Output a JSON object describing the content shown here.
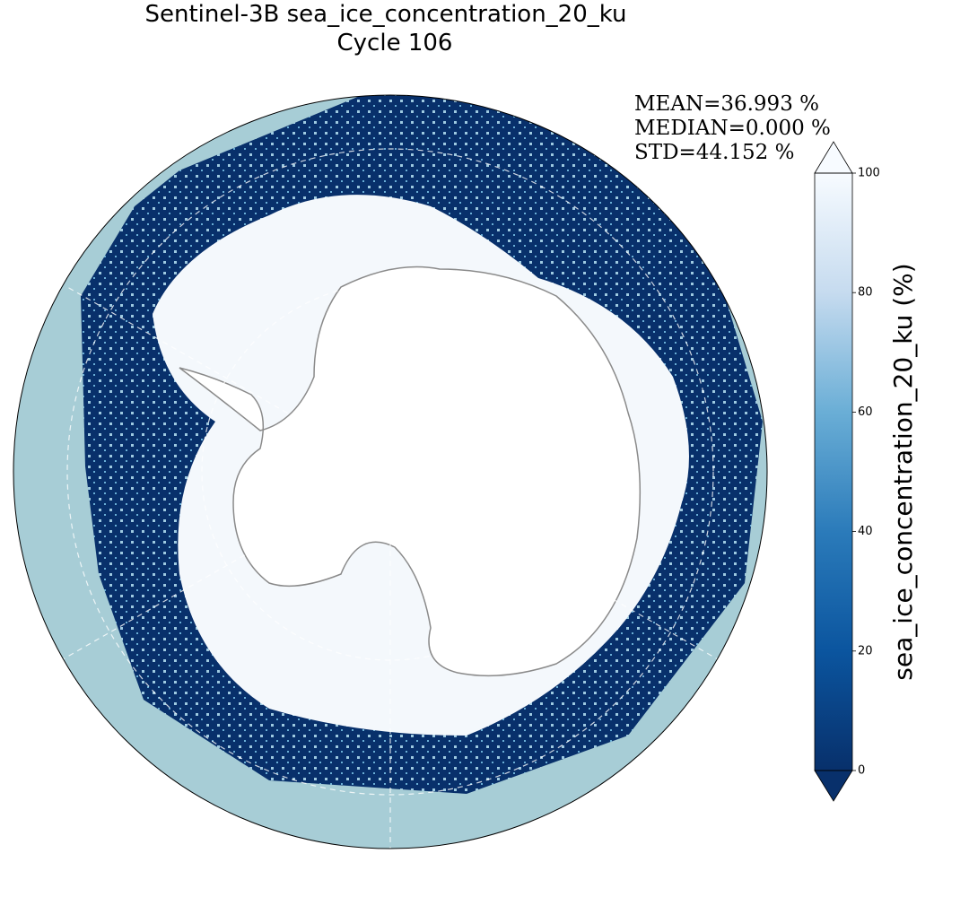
{
  "title": "Sentinel-3B sea_ice_concentration_20_ku",
  "subtitle": "Cycle 106",
  "stats": [
    "MEAN=36.993 %",
    "MEDIAN=0.000 %",
    "STD=44.152 %"
  ],
  "colorbar": {
    "label": "sea_ice_concentration_20_ku (%)",
    "lim": [
      0,
      100
    ],
    "ticks": [
      0,
      20,
      40,
      60,
      80,
      100
    ]
  }
}
